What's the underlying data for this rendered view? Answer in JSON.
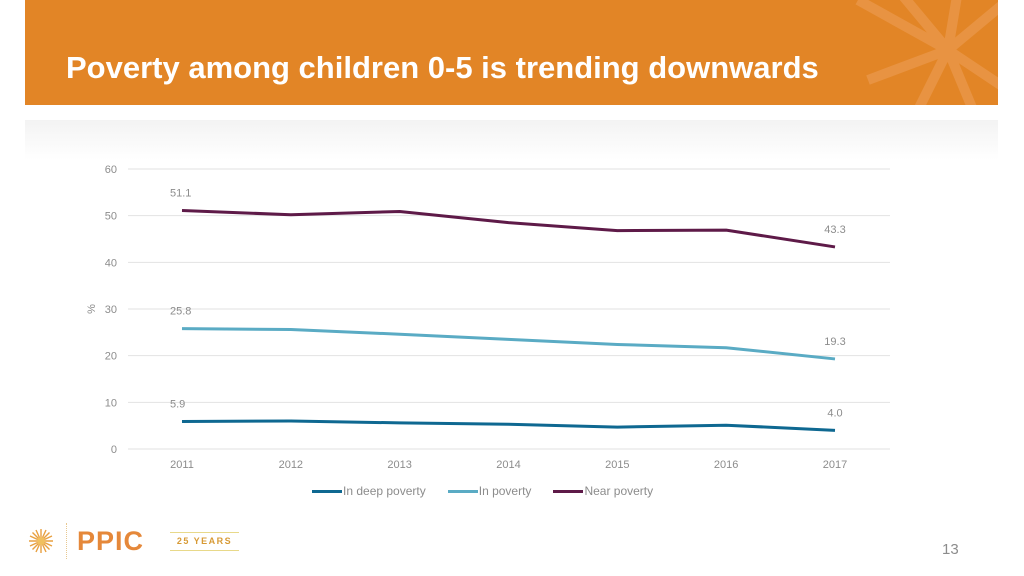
{
  "slide": {
    "title": "Poverty among children 0-5 is trending downwards",
    "page_number": "13",
    "brand": {
      "logo_text": "PPIC",
      "anniversary": "25 YEARS",
      "accent_color": "#e28526"
    }
  },
  "chart_data": {
    "type": "line",
    "title": "",
    "xlabel": "",
    "ylabel": "%",
    "x": [
      "2011",
      "2012",
      "2013",
      "2014",
      "2015",
      "2016",
      "2017"
    ],
    "ylim": [
      0,
      60
    ],
    "yticks": [
      "0",
      "10",
      "20",
      "30",
      "40",
      "50",
      "60"
    ],
    "grid": true,
    "legend_position": "bottom",
    "series": [
      {
        "name": "In deep poverty",
        "color": "#0e6891",
        "values": [
          5.9,
          6.0,
          5.6,
          5.3,
          4.7,
          5.1,
          4.0
        ],
        "labels": {
          "first": "5.9",
          "last": "4.0"
        }
      },
      {
        "name": "In poverty",
        "color": "#5aabc4",
        "values": [
          25.8,
          25.6,
          24.6,
          23.5,
          22.4,
          21.7,
          19.3
        ],
        "labels": {
          "first": "25.8",
          "last": "19.3"
        }
      },
      {
        "name": "Near poverty",
        "color": "#5e1a48",
        "values": [
          51.1,
          50.2,
          50.9,
          48.5,
          46.8,
          46.9,
          43.3
        ],
        "labels": {
          "first": "51.1",
          "last": "43.3"
        }
      }
    ]
  }
}
